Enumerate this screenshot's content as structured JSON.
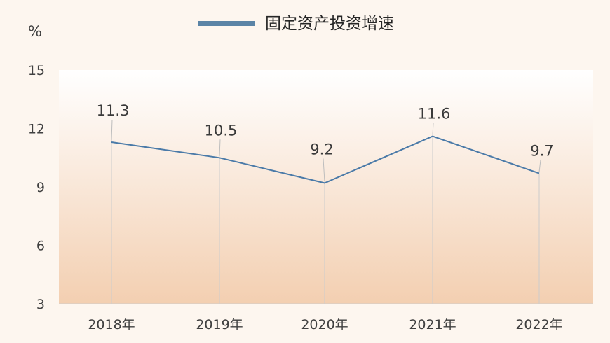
{
  "chart_data": {
    "type": "line",
    "title": "",
    "unit": "%",
    "categories": [
      "2018年",
      "2019年",
      "2020年",
      "2021年",
      "2022年"
    ],
    "series": [
      {
        "name": "固定资产投资增速",
        "values": [
          11.3,
          10.5,
          9.2,
          11.6,
          9.7
        ],
        "color": "#4a7aa8"
      }
    ],
    "ylim": [
      3,
      15
    ],
    "yticks": [
      "3",
      "6",
      "9",
      "12",
      "15"
    ],
    "data_labels": [
      "11.3",
      "10.5",
      "9.2",
      "11.6",
      "9.7"
    ],
    "legend_position": "top-center",
    "legend_color": "#5b84a6",
    "grid": false
  }
}
